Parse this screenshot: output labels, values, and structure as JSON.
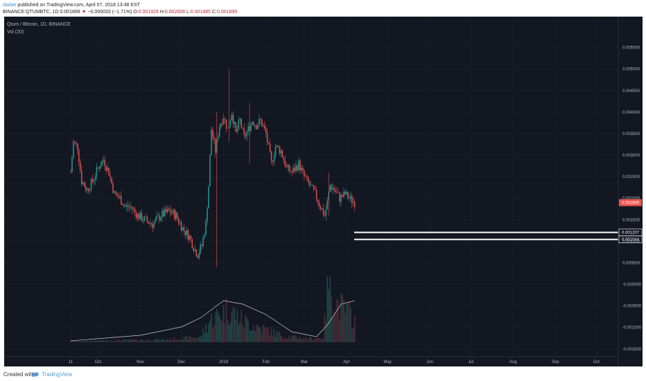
{
  "header": {
    "author": "dadae",
    "published": " published on TradingView.com, April 07, 2018 13:48 EST",
    "symbol_line_prefix": "BINANCE:QTUMBTC, 1D ",
    "last_price": "0.001899",
    "change_arrow": "▼",
    "change": "−0.000033 (−1.71%)",
    "o_label": " O:",
    "o_value": "0.001929",
    "h_label": " H:",
    "h_value": "0.002008",
    "l_label": " L:",
    "l_value": "0.001885",
    "c_label": " C:",
    "c_value": "0.001899"
  },
  "legend": {
    "title": "Qtum / Bitcoin, 1D, BINANCE",
    "volume": "Vol (20)"
  },
  "footer": {
    "created": "Created with",
    "brand": "TradingView"
  },
  "colors": {
    "background": "#131722",
    "up": "#26a69a",
    "down": "#ef5350",
    "grid": "#1e2230",
    "text": "#b2b5be",
    "volume_ma": "#c9c9c9",
    "horizontal_line": "#ffffff"
  },
  "chart_data": {
    "type": "candlestick",
    "title": "Qtum / Bitcoin, 1D, BINANCE",
    "y_ticks": [
      "0.005500",
      "0.005000",
      "0.004500",
      "0.004000",
      "0.003500",
      "0.003000",
      "0.002500",
      "0.002000",
      "0.001500",
      "0.001000",
      "0.000500",
      "-0.000000",
      "-0.000500",
      "-0.001000",
      "-0.001500"
    ],
    "ylim": [
      -0.0016,
      0.0058
    ],
    "x_ticks": [
      "11",
      "Oct",
      "Nov",
      "Dec",
      "2018",
      "Feb",
      "Mar",
      "Apr",
      "May",
      "Jun",
      "Jul",
      "Aug",
      "Sep",
      "Oct"
    ],
    "price_path": [
      [
        "2017-09-11",
        0.0026
      ],
      [
        "2017-09-13",
        0.0033
      ],
      [
        "2017-09-16",
        0.0032
      ],
      [
        "2017-09-19",
        0.0024
      ],
      [
        "2017-09-23",
        0.0022
      ],
      [
        "2017-09-27",
        0.0024
      ],
      [
        "2017-10-01",
        0.0027
      ],
      [
        "2017-10-05",
        0.0029
      ],
      [
        "2017-10-09",
        0.0026
      ],
      [
        "2017-10-13",
        0.0021
      ],
      [
        "2017-10-17",
        0.002
      ],
      [
        "2017-10-21",
        0.0018
      ],
      [
        "2017-10-25",
        0.0018
      ],
      [
        "2017-10-30",
        0.0016
      ],
      [
        "2017-11-04",
        0.0015
      ],
      [
        "2017-11-10",
        0.0014
      ],
      [
        "2017-11-16",
        0.0016
      ],
      [
        "2017-11-22",
        0.0017
      ],
      [
        "2017-11-27",
        0.0016
      ],
      [
        "2017-12-02",
        0.0013
      ],
      [
        "2017-12-07",
        0.0011
      ],
      [
        "2017-12-11",
        0.0008
      ],
      [
        "2017-12-13",
        0.0007
      ],
      [
        "2017-12-16",
        0.0009
      ],
      [
        "2017-12-19",
        0.0014
      ],
      [
        "2017-12-21",
        0.0023
      ],
      [
        "2017-12-23",
        0.0036
      ],
      [
        "2017-12-26",
        0.0031
      ],
      [
        "2017-12-29",
        0.0037
      ],
      [
        "2018-01-01",
        0.0039
      ],
      [
        "2018-01-04",
        0.0036
      ],
      [
        "2018-01-07",
        0.004
      ],
      [
        "2018-01-10",
        0.0035
      ],
      [
        "2018-01-13",
        0.0038
      ],
      [
        "2018-01-16",
        0.0034
      ],
      [
        "2018-01-19",
        0.0036
      ],
      [
        "2018-01-22",
        0.0038
      ],
      [
        "2018-01-25",
        0.0037
      ],
      [
        "2018-01-28",
        0.0038
      ],
      [
        "2018-02-01",
        0.0035
      ],
      [
        "2018-02-05",
        0.0028
      ],
      [
        "2018-02-08",
        0.0032
      ],
      [
        "2018-02-12",
        0.0031
      ],
      [
        "2018-02-16",
        0.0027
      ],
      [
        "2018-02-20",
        0.0026
      ],
      [
        "2018-02-25",
        0.0028
      ],
      [
        "2018-03-01",
        0.0025
      ],
      [
        "2018-03-05",
        0.0023
      ],
      [
        "2018-03-09",
        0.0021
      ],
      [
        "2018-03-13",
        0.0018
      ],
      [
        "2018-03-16",
        0.0016
      ],
      [
        "2018-03-18",
        0.0019
      ],
      [
        "2018-03-20",
        0.0023
      ],
      [
        "2018-03-23",
        0.0022
      ],
      [
        "2018-03-27",
        0.002
      ],
      [
        "2018-03-31",
        0.0021
      ],
      [
        "2018-04-03",
        0.002
      ],
      [
        "2018-04-07",
        0.0019
      ]
    ],
    "spikes": [
      {
        "date": "2017-12-27",
        "high": 0.004,
        "low": 0.0004
      },
      {
        "date": "2018-01-05",
        "high": 0.005,
        "low": 0.0033
      },
      {
        "date": "2018-01-20",
        "high": 0.0042,
        "low": 0.0028
      },
      {
        "date": "2018-03-19",
        "high": 0.0026,
        "low": 0.0016
      }
    ],
    "volume_path": [
      [
        "2017-09-11",
        40
      ],
      [
        "2017-10-15",
        80
      ],
      [
        "2017-11-20",
        110
      ],
      [
        "2017-12-15",
        220
      ],
      [
        "2017-12-22",
        900
      ],
      [
        "2017-12-30",
        1200
      ],
      [
        "2018-01-05",
        1400
      ],
      [
        "2018-01-15",
        900
      ],
      [
        "2018-01-28",
        600
      ],
      [
        "2018-02-15",
        250
      ],
      [
        "2018-03-05",
        150
      ],
      [
        "2018-03-15",
        200
      ],
      [
        "2018-03-19",
        2600
      ],
      [
        "2018-03-25",
        1600
      ],
      [
        "2018-04-07",
        1000
      ]
    ],
    "volume_ma_path": [
      [
        "2017-09-11",
        0.02
      ],
      [
        "2017-11-01",
        0.1
      ],
      [
        "2017-12-01",
        0.22
      ],
      [
        "2017-12-15",
        0.35
      ],
      [
        "2018-01-01",
        0.6
      ],
      [
        "2018-01-15",
        0.55
      ],
      [
        "2018-02-01",
        0.4
      ],
      [
        "2018-02-20",
        0.15
      ],
      [
        "2018-03-10",
        0.08
      ],
      [
        "2018-03-18",
        0.25
      ],
      [
        "2018-03-28",
        0.55
      ],
      [
        "2018-04-07",
        0.6
      ]
    ],
    "last_price": {
      "value": 0.001899,
      "label": "0.001899"
    },
    "horizontal_lines": [
      {
        "value": 0.001207,
        "label": "0.001207"
      },
      {
        "value": 0.001044,
        "label": "0.001044"
      }
    ]
  }
}
